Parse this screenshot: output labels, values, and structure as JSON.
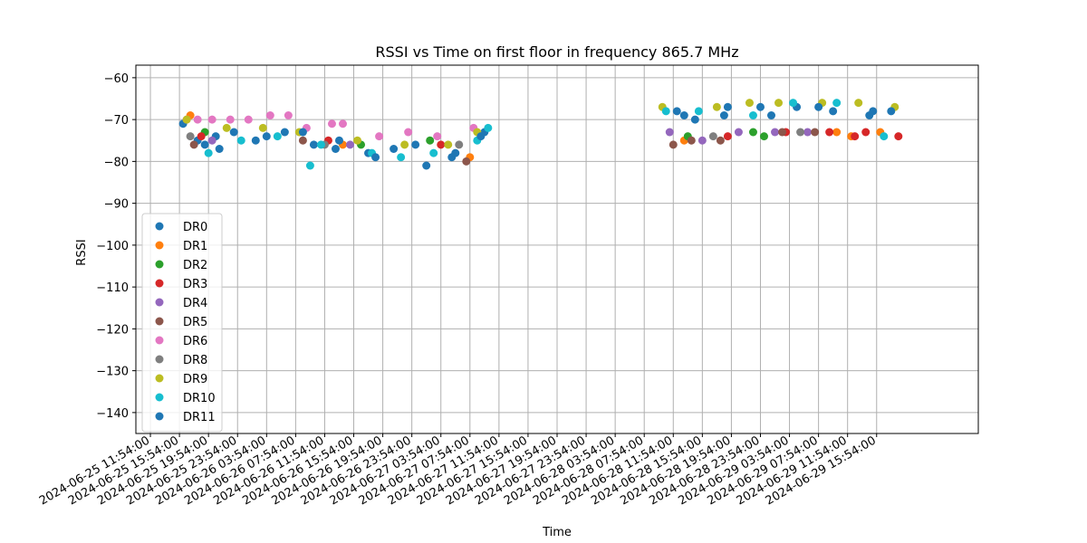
{
  "chart_data": {
    "type": "scatter",
    "title": "RSSI vs Time on first floor in frequency 865.7 MHz",
    "xlabel": "Time",
    "ylabel": "RSSI",
    "ylim": [
      -145,
      -57
    ],
    "xlim": [
      "2024-06-25 09:54:00",
      "2024-06-30 05:54:00"
    ],
    "y_ticks": [
      -60,
      -70,
      -80,
      -90,
      -100,
      -110,
      -120,
      -130,
      -140
    ],
    "x_ticks": [
      "2024-06-25 11:54:00",
      "2024-06-25 15:54:00",
      "2024-06-25 19:54:00",
      "2024-06-25 23:54:00",
      "2024-06-26 03:54:00",
      "2024-06-26 07:54:00",
      "2024-06-26 11:54:00",
      "2024-06-26 15:54:00",
      "2024-06-26 19:54:00",
      "2024-06-26 23:54:00",
      "2024-06-27 03:54:00",
      "2024-06-27 07:54:00",
      "2024-06-27 11:54:00",
      "2024-06-27 15:54:00",
      "2024-06-27 19:54:00",
      "2024-06-27 23:54:00",
      "2024-06-28 03:54:00",
      "2024-06-28 07:54:00",
      "2024-06-28 11:54:00",
      "2024-06-28 15:54:00",
      "2024-06-28 19:54:00",
      "2024-06-28 23:54:00",
      "2024-06-29 03:54:00",
      "2024-06-29 07:54:00",
      "2024-06-29 11:54:00",
      "2024-06-29 15:54:00"
    ],
    "grid": true,
    "legend_position": "lower-left",
    "series": [
      {
        "name": "DR0",
        "color": "#1f77b4",
        "points": [
          [
            "2024-06-25 16:24:00",
            -71
          ],
          [
            "2024-06-25 18:24:00",
            -75
          ],
          [
            "2024-06-25 20:54:00",
            -74
          ],
          [
            "2024-06-25 23:24:00",
            -73
          ],
          [
            "2024-06-26 02:24:00",
            -75
          ],
          [
            "2024-06-26 06:24:00",
            -73
          ],
          [
            "2024-06-26 10:24:00",
            -76
          ],
          [
            "2024-06-26 13:24:00",
            -77
          ],
          [
            "2024-06-26 17:54:00",
            -78
          ],
          [
            "2024-06-26 21:24:00",
            -77
          ],
          [
            "2024-06-27 01:54:00",
            -81
          ],
          [
            "2024-06-27 05:24:00",
            -79
          ],
          [
            "2024-06-27 09:54:00",
            -73
          ],
          [
            "2024-06-28 12:24:00",
            -68
          ],
          [
            "2024-06-28 14:54:00",
            -70
          ],
          [
            "2024-06-28 19:24:00",
            -67
          ],
          [
            "2024-06-28 23:54:00",
            -67
          ],
          [
            "2024-06-29 04:54:00",
            -67
          ],
          [
            "2024-06-29 09:54:00",
            -68
          ],
          [
            "2024-06-29 14:54:00",
            -69
          ]
        ]
      },
      {
        "name": "DR1",
        "color": "#ff7f0e",
        "points": [
          [
            "2024-06-25 17:24:00",
            -69
          ],
          [
            "2024-06-26 14:24:00",
            -76
          ],
          [
            "2024-06-27 07:54:00",
            -79
          ],
          [
            "2024-06-28 13:24:00",
            -75
          ],
          [
            "2024-06-29 10:24:00",
            -73
          ],
          [
            "2024-06-29 12:24:00",
            -74
          ],
          [
            "2024-06-29 16:24:00",
            -73
          ]
        ]
      },
      {
        "name": "DR2",
        "color": "#2ca02c",
        "points": [
          [
            "2024-06-25 19:24:00",
            -73
          ],
          [
            "2024-06-26 16:54:00",
            -76
          ],
          [
            "2024-06-27 02:24:00",
            -75
          ],
          [
            "2024-06-28 13:54:00",
            -74
          ],
          [
            "2024-06-28 22:54:00",
            -73
          ],
          [
            "2024-06-29 00:24:00",
            -74
          ]
        ]
      },
      {
        "name": "DR3",
        "color": "#d62728",
        "points": [
          [
            "2024-06-25 18:54:00",
            -74
          ],
          [
            "2024-06-26 12:24:00",
            -75
          ],
          [
            "2024-06-27 03:54:00",
            -76
          ],
          [
            "2024-06-28 19:24:00",
            -74
          ],
          [
            "2024-06-29 03:24:00",
            -73
          ],
          [
            "2024-06-29 09:24:00",
            -73
          ],
          [
            "2024-06-29 12:54:00",
            -74
          ],
          [
            "2024-06-29 14:24:00",
            -73
          ],
          [
            "2024-06-29 18:54:00",
            -74
          ]
        ]
      },
      {
        "name": "DR4",
        "color": "#9467bd",
        "points": [
          [
            "2024-06-25 20:24:00",
            -75
          ],
          [
            "2024-06-26 15:24:00",
            -76
          ],
          [
            "2024-06-28 11:24:00",
            -73
          ],
          [
            "2024-06-28 15:54:00",
            -75
          ],
          [
            "2024-06-28 20:54:00",
            -73
          ],
          [
            "2024-06-29 01:54:00",
            -73
          ],
          [
            "2024-06-29 06:24:00",
            -73
          ]
        ]
      },
      {
        "name": "DR5",
        "color": "#8c564b",
        "points": [
          [
            "2024-06-25 17:54:00",
            -76
          ],
          [
            "2024-06-26 08:54:00",
            -75
          ],
          [
            "2024-06-27 07:24:00",
            -80
          ],
          [
            "2024-06-28 11:54:00",
            -76
          ],
          [
            "2024-06-28 14:24:00",
            -75
          ],
          [
            "2024-06-28 18:24:00",
            -75
          ],
          [
            "2024-06-29 02:54:00",
            -73
          ],
          [
            "2024-06-29 07:24:00",
            -73
          ]
        ]
      },
      {
        "name": "DR6",
        "color": "#e377c2",
        "points": [
          [
            "2024-06-25 16:54:00",
            -70
          ],
          [
            "2024-06-25 18:24:00",
            -70
          ],
          [
            "2024-06-25 20:24:00",
            -70
          ],
          [
            "2024-06-25 22:54:00",
            -70
          ],
          [
            "2024-06-26 01:24:00",
            -70
          ],
          [
            "2024-06-26 04:24:00",
            -69
          ],
          [
            "2024-06-26 06:54:00",
            -69
          ],
          [
            "2024-06-26 09:24:00",
            -72
          ],
          [
            "2024-06-26 12:54:00",
            -71
          ],
          [
            "2024-06-26 14:24:00",
            -71
          ],
          [
            "2024-06-26 19:24:00",
            -74
          ],
          [
            "2024-06-26 23:24:00",
            -73
          ],
          [
            "2024-06-27 03:24:00",
            -74
          ],
          [
            "2024-06-27 08:24:00",
            -72
          ]
        ]
      },
      {
        "name": "DR8",
        "color": "#7f7f7f",
        "points": [
          [
            "2024-06-25 17:24:00",
            -74
          ],
          [
            "2024-06-26 11:54:00",
            -76
          ],
          [
            "2024-06-27 06:24:00",
            -76
          ],
          [
            "2024-06-28 17:24:00",
            -74
          ],
          [
            "2024-06-29 05:24:00",
            -73
          ]
        ]
      },
      {
        "name": "DR9",
        "color": "#bcbd22",
        "points": [
          [
            "2024-06-25 16:54:00",
            -70
          ],
          [
            "2024-06-25 22:24:00",
            -72
          ],
          [
            "2024-06-26 03:24:00",
            -72
          ],
          [
            "2024-06-26 08:24:00",
            -73
          ],
          [
            "2024-06-26 16:24:00",
            -75
          ],
          [
            "2024-06-26 22:54:00",
            -76
          ],
          [
            "2024-06-27 04:54:00",
            -76
          ],
          [
            "2024-06-27 08:54:00",
            -73
          ],
          [
            "2024-06-28 10:24:00",
            -67
          ],
          [
            "2024-06-28 17:54:00",
            -67
          ],
          [
            "2024-06-28 22:24:00",
            -66
          ],
          [
            "2024-06-29 02:24:00",
            -66
          ],
          [
            "2024-06-29 08:24:00",
            -66
          ],
          [
            "2024-06-29 13:24:00",
            -66
          ],
          [
            "2024-06-29 18:24:00",
            -67
          ]
        ]
      },
      {
        "name": "DR10",
        "color": "#17becf",
        "points": [
          [
            "2024-06-25 19:54:00",
            -78
          ],
          [
            "2024-06-26 00:24:00",
            -75
          ],
          [
            "2024-06-26 05:24:00",
            -74
          ],
          [
            "2024-06-26 09:54:00",
            -81
          ],
          [
            "2024-06-26 11:24:00",
            -76
          ],
          [
            "2024-06-26 18:24:00",
            -78
          ],
          [
            "2024-06-26 22:24:00",
            -79
          ],
          [
            "2024-06-27 02:54:00",
            -78
          ],
          [
            "2024-06-27 08:54:00",
            -75
          ],
          [
            "2024-06-27 10:24:00",
            -72
          ],
          [
            "2024-06-28 10:54:00",
            -68
          ],
          [
            "2024-06-28 15:24:00",
            -68
          ],
          [
            "2024-06-28 22:54:00",
            -69
          ],
          [
            "2024-06-29 04:24:00",
            -66
          ],
          [
            "2024-06-29 10:24:00",
            -66
          ],
          [
            "2024-06-29 16:54:00",
            -74
          ]
        ]
      },
      {
        "name": "DR11",
        "color": "#1f77b4",
        "points": [
          [
            "2024-06-25 19:24:00",
            -76
          ],
          [
            "2024-06-25 21:24:00",
            -77
          ],
          [
            "2024-06-26 03:54:00",
            -74
          ],
          [
            "2024-06-26 08:54:00",
            -73
          ],
          [
            "2024-06-26 13:54:00",
            -75
          ],
          [
            "2024-06-26 18:54:00",
            -79
          ],
          [
            "2024-06-27 00:24:00",
            -76
          ],
          [
            "2024-06-27 05:54:00",
            -78
          ],
          [
            "2024-06-27 09:24:00",
            -74
          ],
          [
            "2024-06-28 13:24:00",
            -69
          ],
          [
            "2024-06-28 18:54:00",
            -69
          ],
          [
            "2024-06-29 01:24:00",
            -69
          ],
          [
            "2024-06-29 07:54:00",
            -67
          ],
          [
            "2024-06-29 15:24:00",
            -68
          ],
          [
            "2024-06-29 17:54:00",
            -68
          ]
        ]
      }
    ]
  }
}
